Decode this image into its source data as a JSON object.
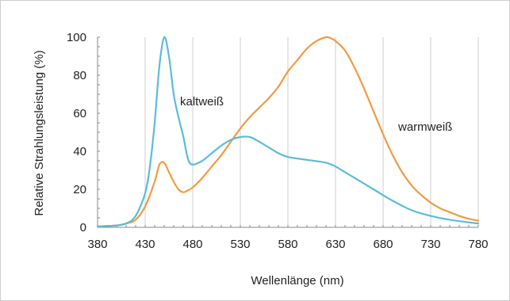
{
  "chart_data": {
    "type": "line",
    "xlabel": "Wellenlänge (nm)",
    "ylabel": "Relative Strahlungsleistung (%)",
    "xlim": [
      380,
      780
    ],
    "ylim": [
      0,
      100
    ],
    "x_ticks": [
      380,
      430,
      480,
      530,
      580,
      630,
      680,
      730,
      780
    ],
    "y_ticks": [
      0,
      20,
      40,
      60,
      80,
      100
    ],
    "grid": "vertical",
    "series": [
      {
        "name": "kaltweiß",
        "color": "#5bbcd8",
        "points": [
          [
            380,
            0.5
          ],
          [
            400,
            1
          ],
          [
            410,
            2
          ],
          [
            420,
            6
          ],
          [
            430,
            18
          ],
          [
            435,
            32
          ],
          [
            440,
            55
          ],
          [
            445,
            85
          ],
          [
            450,
            100
          ],
          [
            455,
            90
          ],
          [
            460,
            70
          ],
          [
            465,
            58
          ],
          [
            470,
            48
          ],
          [
            475,
            36
          ],
          [
            480,
            33
          ],
          [
            490,
            35
          ],
          [
            500,
            39
          ],
          [
            510,
            43
          ],
          [
            520,
            46
          ],
          [
            530,
            47.5
          ],
          [
            540,
            47.5
          ],
          [
            550,
            45
          ],
          [
            560,
            42
          ],
          [
            570,
            39
          ],
          [
            580,
            37
          ],
          [
            600,
            35.5
          ],
          [
            620,
            34
          ],
          [
            630,
            32
          ],
          [
            640,
            29
          ],
          [
            650,
            26
          ],
          [
            670,
            20
          ],
          [
            690,
            14
          ],
          [
            710,
            9
          ],
          [
            730,
            6
          ],
          [
            750,
            4
          ],
          [
            780,
            2
          ]
        ]
      },
      {
        "name": "warmweiß",
        "color": "#f29a45",
        "points": [
          [
            380,
            0.5
          ],
          [
            400,
            1
          ],
          [
            410,
            2
          ],
          [
            420,
            4
          ],
          [
            430,
            11
          ],
          [
            440,
            24
          ],
          [
            445,
            33
          ],
          [
            450,
            34
          ],
          [
            455,
            29
          ],
          [
            460,
            24
          ],
          [
            465,
            20
          ],
          [
            470,
            18.5
          ],
          [
            475,
            19.5
          ],
          [
            480,
            21
          ],
          [
            490,
            26
          ],
          [
            500,
            32
          ],
          [
            510,
            38
          ],
          [
            520,
            45
          ],
          [
            530,
            52
          ],
          [
            540,
            58
          ],
          [
            550,
            63
          ],
          [
            560,
            68
          ],
          [
            570,
            74
          ],
          [
            580,
            82
          ],
          [
            590,
            88
          ],
          [
            600,
            94
          ],
          [
            610,
            98
          ],
          [
            620,
            100
          ],
          [
            625,
            99.5
          ],
          [
            630,
            98
          ],
          [
            640,
            93
          ],
          [
            650,
            84
          ],
          [
            660,
            73
          ],
          [
            670,
            61
          ],
          [
            680,
            49
          ],
          [
            690,
            38
          ],
          [
            700,
            29
          ],
          [
            710,
            22
          ],
          [
            720,
            17
          ],
          [
            730,
            13
          ],
          [
            740,
            10
          ],
          [
            750,
            8
          ],
          [
            760,
            6
          ],
          [
            770,
            4.5
          ],
          [
            780,
            3.5
          ]
        ]
      }
    ]
  }
}
